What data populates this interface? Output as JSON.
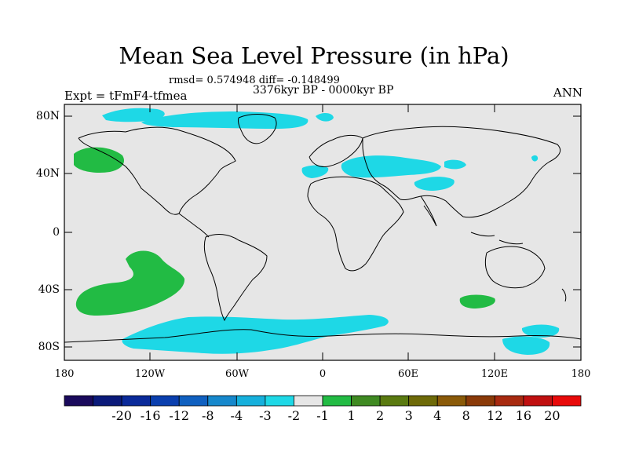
{
  "header": {
    "title": "Mean Sea Level Pressure (in hPa)",
    "stats": "rmsd= 0.574948 diff= -0.148499",
    "period": "3376kyr BP - 0000kyr BP",
    "experiment": "Expt = tFmF4-tfmea",
    "season": "ANN"
  },
  "axes": {
    "lat_labels": [
      "80N",
      "40N",
      "0",
      "40S",
      "80S"
    ],
    "lon_labels": [
      "180",
      "120W",
      "60W",
      "0",
      "60E",
      "120E",
      "180"
    ]
  },
  "colorbar": {
    "colors": [
      "#1a0a5c",
      "#0b1a7a",
      "#0a2a9a",
      "#0a3fae",
      "#1060c0",
      "#1688cc",
      "#16b0dc",
      "#1ed8e6",
      "#e6e6e6",
      "#22bb44",
      "#3f8a22",
      "#5a7a10",
      "#6e6a08",
      "#8a5a08",
      "#8a3a08",
      "#a82a10",
      "#c01010",
      "#e80a0a"
    ],
    "labels": [
      "-20",
      "-16",
      "-12",
      "-8",
      "-4",
      "-3",
      "-2",
      "-1",
      "1",
      "2",
      "3",
      "4",
      "8",
      "12",
      "16",
      "20"
    ]
  },
  "colors": {
    "background": "#e6e6e6",
    "positive_anomaly": "#22bb44",
    "negative_anomaly": "#1ed8e6",
    "coastline": "#000000"
  }
}
